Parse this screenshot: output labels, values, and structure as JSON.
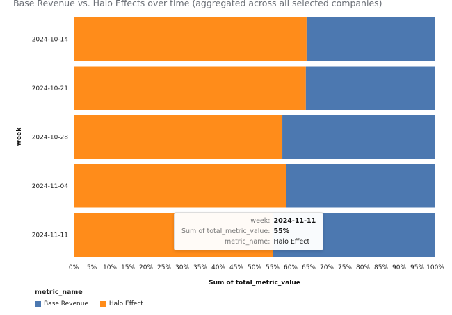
{
  "chart_data": {
    "type": "bar",
    "orientation": "horizontal",
    "stacked": "normalized",
    "title": "Base Revenue vs. Halo Effects over time (aggregated across all selected companies)",
    "xlabel": "Sum of total_metric_value",
    "ylabel": "week",
    "xlim": [
      0,
      100
    ],
    "x_ticks": [
      "0%",
      "5%",
      "10%",
      "15%",
      "20%",
      "25%",
      "30%",
      "35%",
      "40%",
      "45%",
      "50%",
      "55%",
      "60%",
      "65%",
      "70%",
      "75%",
      "80%",
      "85%",
      "90%",
      "95%",
      "100%"
    ],
    "categories": [
      "2024-10-14",
      "2024-10-21",
      "2024-10-28",
      "2024-11-04",
      "2024-11-11"
    ],
    "series": [
      {
        "name": "Halo Effect",
        "color": "#ff8c1a",
        "values": [
          64.4,
          64.2,
          57.7,
          58.8,
          55
        ]
      },
      {
        "name": "Base Revenue",
        "color": "#4c78b0",
        "values": [
          35.6,
          35.8,
          42.3,
          41.2,
          45
        ]
      }
    ],
    "grid": false,
    "legend": {
      "title": "metric_name",
      "placement": "bottom-left",
      "items": [
        "Base Revenue",
        "Halo Effect"
      ]
    }
  },
  "tooltip": {
    "rows": [
      {
        "key": "week:",
        "value": "2024-11-11"
      },
      {
        "key": "Sum of total_metric_value:",
        "value": "55%"
      },
      {
        "key": "metric_name:",
        "value": "Halo Effect"
      }
    ]
  }
}
